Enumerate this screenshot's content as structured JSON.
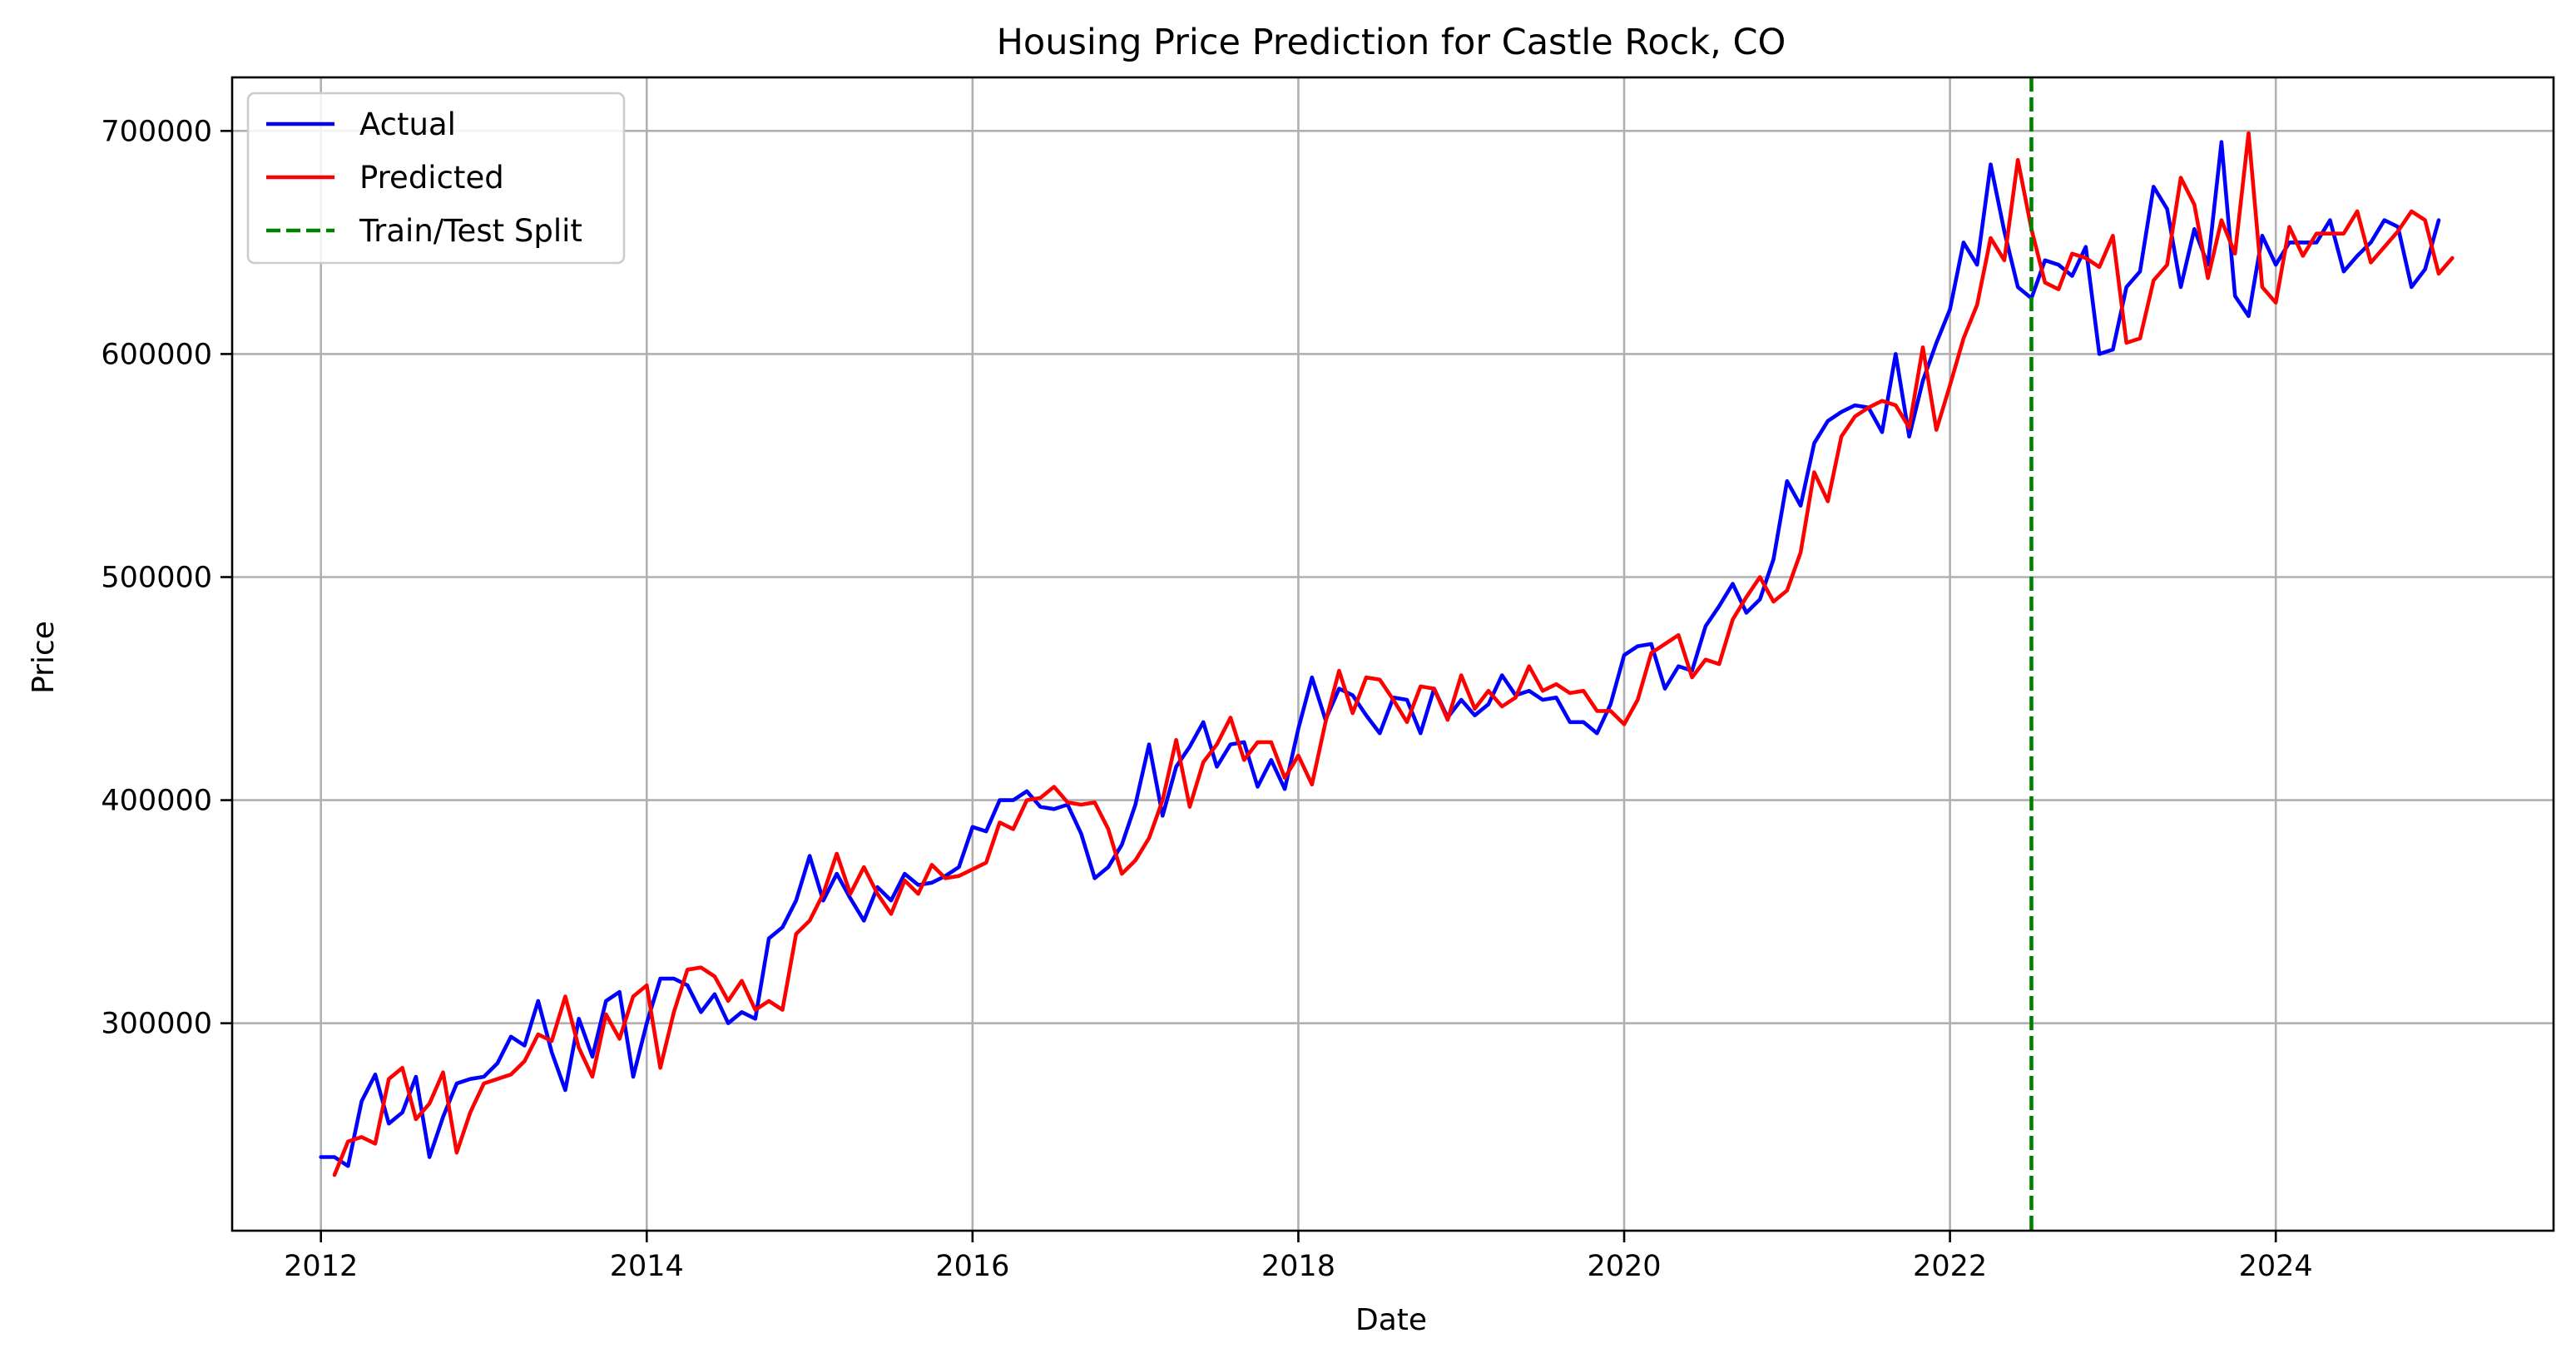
{
  "chart_data": {
    "type": "line",
    "title": "Housing Price Prediction for Castle Rock, CO",
    "xlabel": "Date",
    "ylabel": "Price",
    "x_axis": "date",
    "xlim": [
      "2011-06-15",
      "2025-09-15"
    ],
    "ylim": [
      207000,
      724000
    ],
    "x_ticks": [
      {
        "date": "2012-01-01",
        "label": "2012"
      },
      {
        "date": "2014-01-01",
        "label": "2014"
      },
      {
        "date": "2016-01-01",
        "label": "2016"
      },
      {
        "date": "2018-01-01",
        "label": "2018"
      },
      {
        "date": "2020-01-01",
        "label": "2020"
      },
      {
        "date": "2022-01-01",
        "label": "2022"
      },
      {
        "date": "2024-01-01",
        "label": "2024"
      }
    ],
    "y_ticks": [
      300000,
      400000,
      500000,
      600000,
      700000
    ],
    "grid": true,
    "legend_position": "top-left",
    "start_month": "2012-01",
    "series": [
      {
        "name": "Actual",
        "color": "#0000ff",
        "style": "solid",
        "values": [
          240000,
          240000,
          236000,
          265000,
          277000,
          255000,
          260000,
          276000,
          240000,
          258000,
          273000,
          275000,
          276000,
          282000,
          294000,
          290000,
          310000,
          287000,
          270000,
          302000,
          285000,
          310000,
          314000,
          276000,
          300000,
          320000,
          320000,
          317000,
          305000,
          313000,
          300000,
          305000,
          302000,
          338000,
          343000,
          355000,
          375000,
          355000,
          367000,
          356000,
          346000,
          361000,
          355000,
          367000,
          362000,
          363000,
          366000,
          370000,
          388000,
          386000,
          400000,
          400000,
          404000,
          397000,
          396000,
          398000,
          385000,
          365000,
          370000,
          380000,
          398000,
          425000,
          393000,
          415000,
          424000,
          435000,
          415000,
          425000,
          426000,
          406000,
          418000,
          405000,
          432000,
          455000,
          436000,
          450000,
          447000,
          438000,
          430000,
          446000,
          445000,
          430000,
          450000,
          437000,
          445000,
          438000,
          443000,
          456000,
          447000,
          449000,
          445000,
          446000,
          435000,
          435000,
          430000,
          443000,
          465000,
          469000,
          470000,
          450000,
          460000,
          458000,
          478000,
          487000,
          497000,
          484000,
          490000,
          508000,
          543000,
          532000,
          560000,
          570000,
          574000,
          577000,
          576000,
          565000,
          600000,
          563000,
          588000,
          605000,
          620000,
          650000,
          640000,
          685000,
          655000,
          630000,
          625000,
          642000,
          640000,
          635000,
          648000,
          600000,
          602000,
          630000,
          637000,
          675000,
          665000,
          630000,
          656000,
          640000,
          695000,
          626000,
          617000,
          653000,
          640000,
          650000,
          650000,
          650000,
          660000,
          637000,
          644000,
          650000,
          660000,
          657000,
          630000,
          638000,
          660000
        ]
      },
      {
        "name": "Predicted",
        "color": "#ff0000",
        "style": "solid",
        "values": [
          232000,
          247000,
          249000,
          246000,
          275000,
          280000,
          257000,
          264000,
          278000,
          242000,
          260000,
          273000,
          275000,
          277000,
          283000,
          295000,
          292000,
          312000,
          289000,
          276000,
          304000,
          293000,
          312000,
          317000,
          280000,
          305000,
          324000,
          325000,
          321000,
          310000,
          319000,
          306000,
          310000,
          306000,
          340000,
          346000,
          358000,
          376000,
          358000,
          370000,
          358000,
          349000,
          364000,
          358000,
          371000,
          365000,
          366000,
          369000,
          372000,
          390000,
          387000,
          400000,
          401000,
          406000,
          399000,
          398000,
          399000,
          387000,
          367000,
          373000,
          383000,
          400000,
          427000,
          397000,
          417000,
          425000,
          437000,
          418000,
          426000,
          426000,
          410000,
          420000,
          407000,
          435000,
          458000,
          439000,
          455000,
          454000,
          445000,
          435000,
          451000,
          450000,
          436000,
          456000,
          441000,
          449000,
          442000,
          446000,
          460000,
          449000,
          452000,
          448000,
          449000,
          440000,
          440000,
          434000,
          445000,
          466000,
          470000,
          474000,
          455000,
          463000,
          461000,
          481000,
          491000,
          500000,
          489000,
          494000,
          511000,
          547000,
          534000,
          563000,
          572000,
          576000,
          579000,
          577000,
          567000,
          603000,
          566000,
          586000,
          607000,
          622000,
          652000,
          642000,
          687000,
          656000,
          632000,
          629000,
          645000,
          643000,
          639000,
          653000,
          605000,
          607000,
          633000,
          640000,
          679000,
          667000,
          634000,
          660000,
          645000,
          699000,
          630000,
          623000,
          657000,
          644000,
          654000,
          654000,
          654000,
          664000,
          641000,
          648000,
          655000,
          664000,
          660000,
          636000,
          643000
        ]
      }
    ],
    "annotations": [
      {
        "type": "vline",
        "name": "Train/Test Split",
        "date": "2022-07-01",
        "color": "#008000",
        "style": "dashed"
      }
    ]
  }
}
